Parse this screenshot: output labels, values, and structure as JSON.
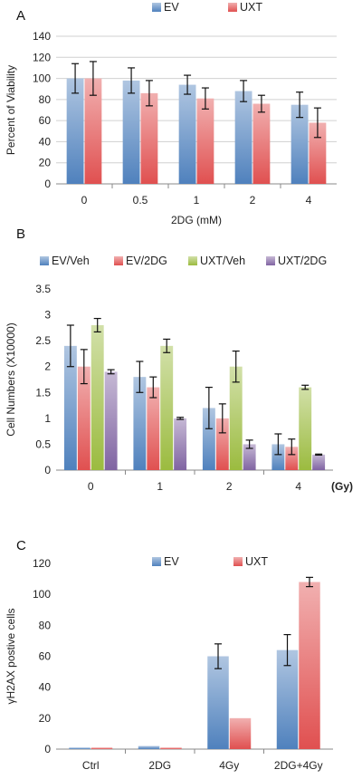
{
  "colors": {
    "EV": "#4f81bd",
    "UXT": "#e05050",
    "EV/Veh": "#4f81bd",
    "EV/2DG": "#e05050",
    "UXT/Veh": "#9bbb3f",
    "UXT/2DG": "#8064a2"
  },
  "chart_data": [
    {
      "panel": "A",
      "type": "bar",
      "title": "",
      "xlabel": "2DG (mM)",
      "ylabel": "Percent of Viability",
      "ylim": [
        0,
        140
      ],
      "yticks": [
        0,
        20,
        40,
        60,
        80,
        100,
        120,
        140
      ],
      "grid": "horizontal",
      "legend": "top",
      "categories": [
        "0",
        "0.5",
        "1",
        "2",
        "4"
      ],
      "series": [
        {
          "name": "EV",
          "values": [
            100,
            98,
            94,
            88,
            75
          ],
          "errors": [
            14,
            12,
            9,
            10,
            12
          ]
        },
        {
          "name": "UXT",
          "values": [
            100,
            86,
            81,
            76,
            58
          ],
          "errors": [
            16,
            12,
            10,
            8,
            14
          ]
        }
      ]
    },
    {
      "panel": "B",
      "type": "bar",
      "title": "",
      "xlabel": "",
      "unit_label": "(Gy)",
      "ylabel": "Cell Numbers (X10000)",
      "ylim": [
        0,
        3.5
      ],
      "yticks": [
        "0",
        "0.5",
        "1",
        "1.5",
        "2",
        "2.5",
        "3",
        "3.5"
      ],
      "grid": "none",
      "legend": "top",
      "categories": [
        "0",
        "1",
        "2",
        "4"
      ],
      "series": [
        {
          "name": "EV/Veh",
          "values": [
            2.4,
            1.8,
            1.2,
            0.5
          ],
          "errors": [
            0.4,
            0.3,
            0.4,
            0.2
          ]
        },
        {
          "name": "EV/2DG",
          "values": [
            2.0,
            1.6,
            1.0,
            0.45
          ],
          "errors": [
            0.33,
            0.2,
            0.28,
            0.15
          ]
        },
        {
          "name": "UXT/Veh",
          "values": [
            2.8,
            2.4,
            2.0,
            1.6
          ],
          "errors": [
            0.13,
            0.13,
            0.3,
            0.04
          ]
        },
        {
          "name": "UXT/2DG",
          "values": [
            1.9,
            1.0,
            0.5,
            0.3
          ],
          "errors": [
            0.04,
            0.02,
            0.08,
            0.01
          ]
        }
      ]
    },
    {
      "panel": "C",
      "type": "bar",
      "title": "",
      "xlabel": "",
      "ylabel": "γH2AX postive cells",
      "ylim": [
        0,
        120
      ],
      "yticks": [
        0,
        20,
        40,
        60,
        80,
        100,
        120
      ],
      "grid": "none",
      "legend": "top",
      "categories": [
        "Ctrl",
        "2DG",
        "4Gy",
        "2DG+4Gy"
      ],
      "series": [
        {
          "name": "EV",
          "values": [
            1,
            2,
            60,
            64
          ],
          "errors": [
            0,
            0,
            8,
            10
          ]
        },
        {
          "name": "UXT",
          "values": [
            1,
            1,
            20,
            108
          ],
          "errors": [
            0,
            0,
            0,
            3
          ]
        }
      ]
    }
  ]
}
